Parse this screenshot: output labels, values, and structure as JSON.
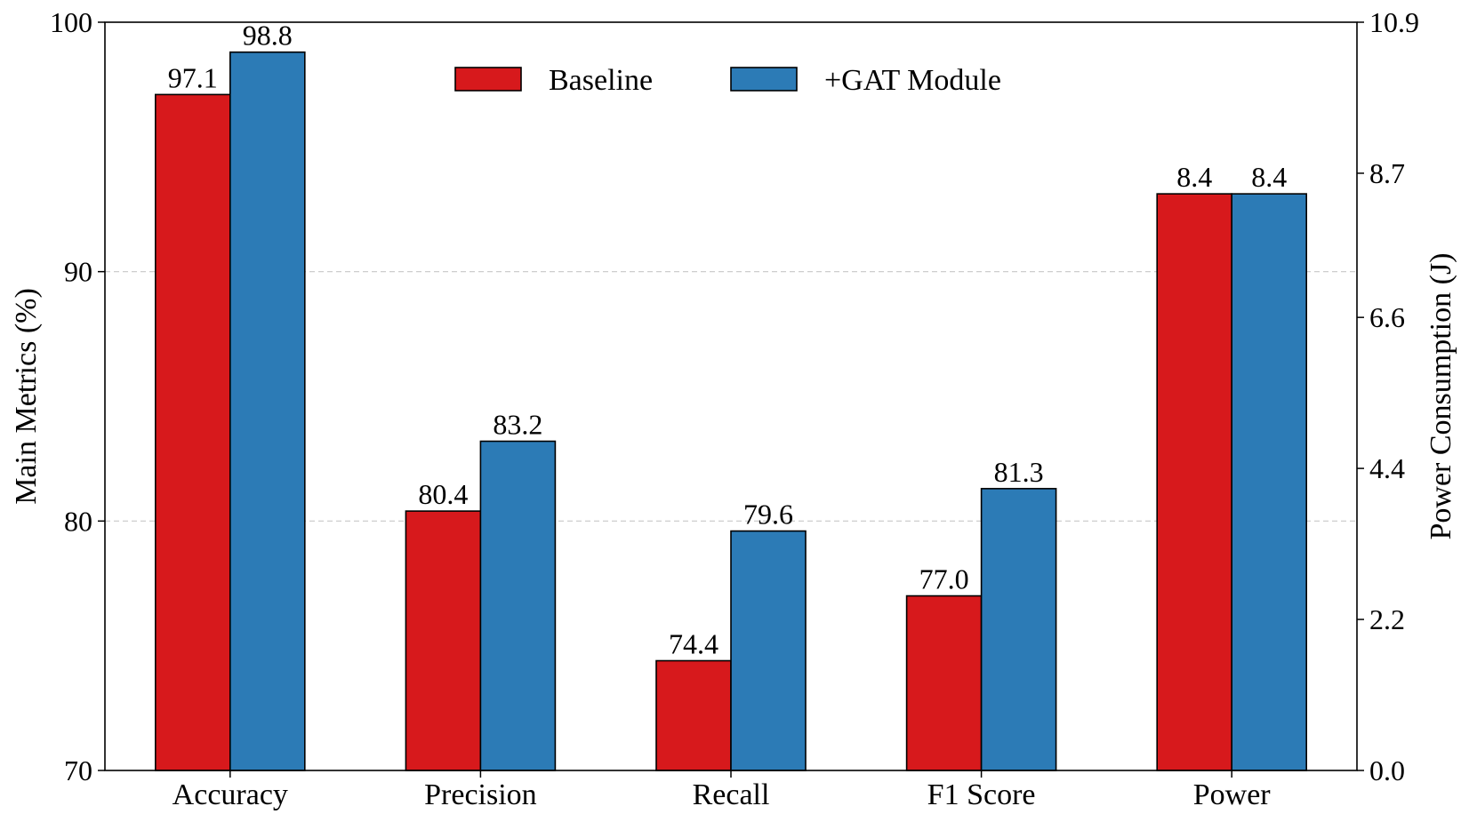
{
  "chart_data": {
    "type": "bar",
    "categories": [
      "Accuracy",
      "Precision",
      "Recall",
      "F1 Score",
      "Power"
    ],
    "series": [
      {
        "name": "Baseline",
        "values": [
          97.1,
          80.4,
          74.4,
          77.0,
          8.4
        ],
        "labels": [
          "97.1",
          "80.4",
          "74.4",
          "77.0",
          "8.4"
        ]
      },
      {
        "name": "+GAT Module",
        "values": [
          98.8,
          83.2,
          79.6,
          81.3,
          8.4
        ],
        "labels": [
          "98.8",
          "83.2",
          "79.6",
          "81.3",
          "8.4"
        ]
      }
    ],
    "secondary_axis_categories": [
      "Power"
    ],
    "ylabel": "Main Metrics (%)",
    "ylim": [
      70,
      100
    ],
    "yticks": [
      "70",
      "80",
      "90",
      "100"
    ],
    "y2label": "Power Consumption (J)",
    "y2lim": [
      0.0,
      10.9
    ],
    "y2ticks": [
      "0.0",
      "2.2",
      "4.4",
      "6.6",
      "8.7",
      "10.9"
    ],
    "grid": "horizontal dashed",
    "legend_position": "top-center",
    "colors": {
      "Baseline": "#d7191c",
      "+GAT Module": "#2c7bb6"
    }
  }
}
